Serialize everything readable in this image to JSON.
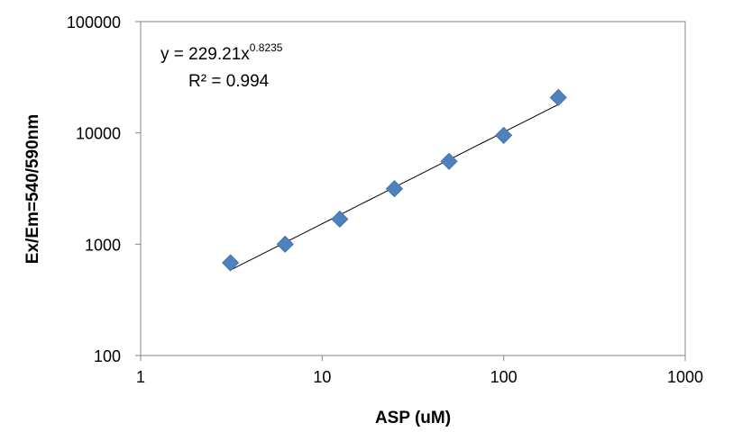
{
  "chart_data": {
    "type": "scatter",
    "title": "",
    "xlabel": "ASP (uM)",
    "ylabel": "Ex/Em=540/590nm",
    "x_scale": "log",
    "y_scale": "log",
    "xlim": [
      1,
      1000
    ],
    "ylim": [
      100,
      100000
    ],
    "x_ticks": [
      1,
      10,
      100,
      1000
    ],
    "y_ticks": [
      100,
      1000,
      10000,
      100000
    ],
    "x_tick_labels": [
      "1",
      "10",
      "100",
      "1000"
    ],
    "y_tick_labels": [
      "100",
      "1000",
      "10000",
      "100000"
    ],
    "grid": false,
    "legend": "none",
    "series": [
      {
        "marker": "diamond",
        "color": "#4f81bd",
        "x": [
          3.125,
          6.25,
          12.5,
          25,
          50,
          100,
          200
        ],
        "y": [
          680,
          1000,
          1680,
          3150,
          5550,
          9500,
          20800
        ]
      }
    ],
    "trendline": {
      "type": "power",
      "coefficient": 229.21,
      "exponent": 0.8235,
      "x_range": [
        3.125,
        200
      ],
      "color": "#000000"
    },
    "annotations": {
      "equation_base": "y = 229.21x",
      "equation_exponent": "0.8235",
      "r_squared": "R² = 0.994"
    }
  }
}
